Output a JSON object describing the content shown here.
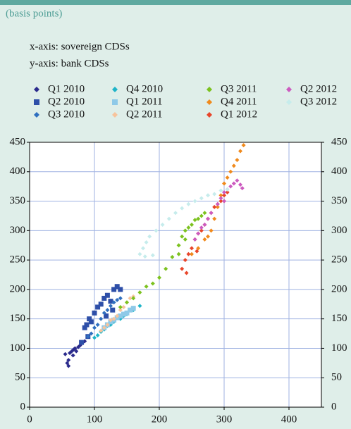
{
  "chart_data": {
    "type": "scatter",
    "subtitle": "(basis points)",
    "annotations": [
      "x-axis: sovereign CDSs",
      "y-axis: bank CDSs"
    ],
    "xlim": [
      0,
      450
    ],
    "ylim": [
      0,
      450
    ],
    "xticks": [
      0,
      100,
      200,
      300,
      400
    ],
    "yticks": [
      0,
      50,
      100,
      150,
      200,
      250,
      300,
      350,
      400,
      450
    ],
    "grid": true,
    "series": [
      {
        "name": "Q1 2010",
        "color": "#2b2b8c",
        "marker": "diamond",
        "x": [
          55,
          58,
          60,
          62,
          65,
          68,
          70,
          72,
          75,
          78,
          80,
          82,
          85,
          60,
          67
        ],
        "values": [
          90,
          75,
          80,
          92,
          95,
          98,
          100,
          95,
          102,
          105,
          108,
          110,
          112,
          70,
          88
        ]
      },
      {
        "name": "Q2 2010",
        "color": "#2e4fa8",
        "marker": "square",
        "x": [
          80,
          85,
          88,
          92,
          95,
          100,
          105,
          110,
          115,
          120,
          125,
          130,
          135,
          140,
          90,
          118,
          128
        ],
        "values": [
          110,
          135,
          140,
          150,
          145,
          160,
          170,
          175,
          185,
          190,
          180,
          200,
          205,
          200,
          120,
          155,
          165
        ]
      },
      {
        "name": "Q3 2010",
        "color": "#2f6fbf",
        "marker": "diamond",
        "x": [
          90,
          95,
          100,
          105,
          110,
          115,
          120,
          125,
          130,
          135,
          140
        ],
        "values": [
          120,
          125,
          135,
          140,
          150,
          160,
          165,
          172,
          178,
          182,
          185
        ]
      },
      {
        "name": "Q4 2010",
        "color": "#1fb4c8",
        "marker": "diamond",
        "x": [
          100,
          105,
          110,
          115,
          120,
          130,
          140,
          150,
          160,
          170,
          125,
          145
        ],
        "values": [
          118,
          122,
          128,
          132,
          138,
          145,
          150,
          158,
          165,
          172,
          140,
          155
        ]
      },
      {
        "name": "Q1 2011",
        "color": "#8ec9e8",
        "marker": "square",
        "x": [
          115,
          120,
          125,
          130,
          135,
          140,
          145,
          150,
          155,
          160
        ],
        "values": [
          135,
          140,
          145,
          148,
          152,
          155,
          158,
          160,
          165,
          168
        ]
      },
      {
        "name": "Q2 2011",
        "color": "#f7c39c",
        "marker": "diamond",
        "x": [
          110,
          115,
          120,
          125,
          130,
          135,
          140,
          145,
          150,
          155,
          160
        ],
        "values": [
          130,
          135,
          140,
          148,
          150,
          155,
          165,
          170,
          178,
          185,
          188
        ]
      },
      {
        "name": "Q3 2011",
        "color": "#7cc21f",
        "marker": "diamond",
        "x": [
          140,
          150,
          160,
          170,
          180,
          190,
          200,
          210,
          220,
          230,
          235,
          240,
          245,
          250,
          255,
          260,
          265,
          270,
          230,
          240
        ],
        "values": [
          170,
          178,
          185,
          195,
          205,
          210,
          220,
          235,
          255,
          275,
          290,
          300,
          305,
          310,
          318,
          320,
          325,
          330,
          260,
          285
        ]
      },
      {
        "name": "Q4 2011",
        "color": "#f08a1c",
        "marker": "diamond",
        "x": [
          250,
          260,
          270,
          280,
          285,
          290,
          295,
          300,
          305,
          310,
          315,
          320,
          325,
          330,
          275,
          300
        ],
        "values": [
          260,
          270,
          285,
          300,
          320,
          340,
          360,
          380,
          390,
          400,
          410,
          420,
          435,
          445,
          290,
          350
        ]
      },
      {
        "name": "Q1 2012",
        "color": "#e8452a",
        "marker": "diamond",
        "x": [
          235,
          240,
          245,
          250,
          255,
          260,
          265,
          270,
          275,
          280,
          285,
          290,
          295,
          300,
          305,
          242,
          258
        ],
        "values": [
          235,
          250,
          260,
          270,
          285,
          295,
          300,
          310,
          320,
          330,
          340,
          345,
          350,
          360,
          365,
          228,
          265
        ]
      },
      {
        "name": "Q2 2012",
        "color": "#cc5bc0",
        "marker": "diamond",
        "x": [
          255,
          260,
          265,
          270,
          275,
          280,
          290,
          295,
          300,
          305,
          310,
          315,
          320,
          325,
          328,
          300
        ],
        "values": [
          285,
          295,
          305,
          310,
          320,
          330,
          345,
          355,
          365,
          370,
          375,
          380,
          385,
          378,
          372,
          350
        ]
      },
      {
        "name": "Q3 2012",
        "color": "#c6ecec",
        "marker": "diamond",
        "x": [
          170,
          175,
          180,
          185,
          195,
          205,
          215,
          225,
          235,
          245,
          255,
          265,
          275,
          285,
          295,
          305,
          190,
          178
        ],
        "values": [
          260,
          270,
          280,
          290,
          300,
          310,
          320,
          330,
          338,
          345,
          350,
          355,
          360,
          362,
          368,
          370,
          258,
          256
        ]
      }
    ]
  }
}
